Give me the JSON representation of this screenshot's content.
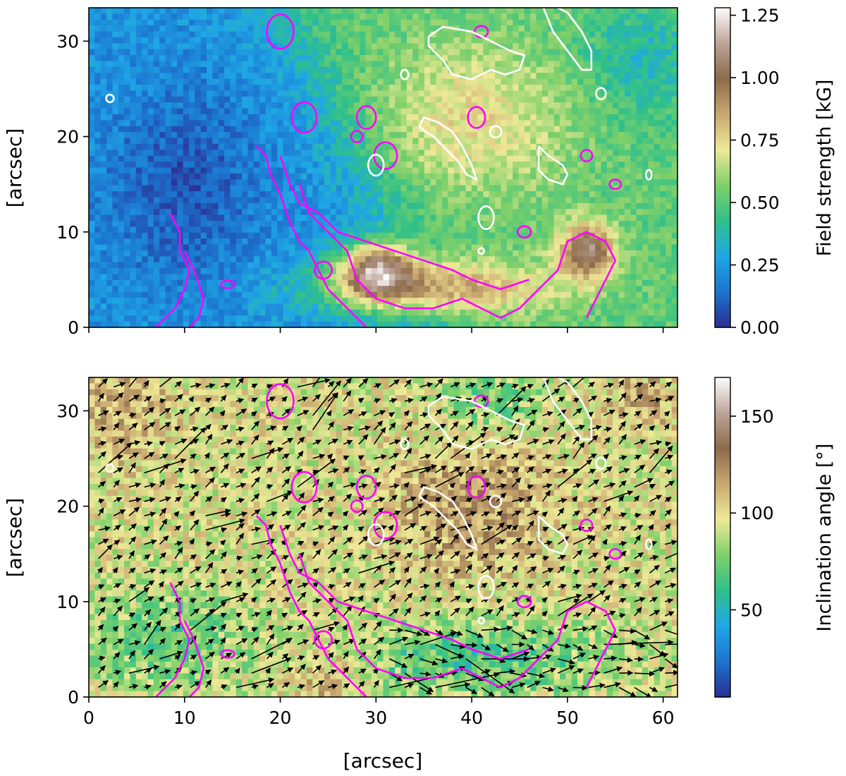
{
  "chart_data": [
    {
      "type": "heatmap",
      "panel": "top",
      "title": "",
      "xlabel": "",
      "ylabel": "[arcsec]",
      "xlim": [
        0,
        61.5
      ],
      "ylim": [
        0,
        33.5
      ],
      "xticks": [
        0,
        10,
        20,
        30,
        40,
        50,
        60
      ],
      "yticks": [
        0,
        10,
        20,
        30
      ],
      "ytick_labels": [
        "0",
        "10",
        "20",
        "30"
      ],
      "colorbar": {
        "label": "Field strength [kG]",
        "ticks": [
          0.0,
          0.25,
          0.5,
          0.75,
          1.0,
          1.25
        ],
        "tick_labels": [
          "0.00",
          "0.25",
          "0.50",
          "0.75",
          "1.00",
          "1.25"
        ],
        "range": [
          0,
          1.28
        ],
        "colormap": [
          "#2b2f92",
          "#1c74cf",
          "#1fa7e6",
          "#2fc08a",
          "#7fd06a",
          "#eee997",
          "#c9a870",
          "#8c6b4c",
          "#bda498",
          "#fdfdfd"
        ]
      },
      "contours": [
        {
          "color": "#ff00ff",
          "name": ""
        },
        {
          "color": "#ffffff",
          "name": ""
        }
      ]
    },
    {
      "type": "heatmap",
      "panel": "bottom",
      "title": "",
      "xlabel": "[arcsec]",
      "ylabel": "[arcsec]",
      "xlim": [
        0,
        61.5
      ],
      "ylim": [
        0,
        33.5
      ],
      "xticks": [
        0,
        10,
        20,
        30,
        40,
        50,
        60
      ],
      "xtick_labels": [
        "0",
        "10",
        "20",
        "30",
        "40",
        "50",
        "60"
      ],
      "yticks": [
        0,
        10,
        20,
        30
      ],
      "ytick_labels": [
        "0",
        "10",
        "20",
        "30"
      ],
      "colorbar": {
        "label": "Inclination angle [°]",
        "ticks": [
          50,
          100,
          150
        ],
        "tick_labels": [
          "50",
          "100",
          "150"
        ],
        "range": [
          5,
          170
        ],
        "colormap": [
          "#2b2f92",
          "#1c74cf",
          "#1fa7e6",
          "#2fc08a",
          "#7fd06a",
          "#eee997",
          "#c9a870",
          "#8c6b4c",
          "#bda498",
          "#fdfdfd"
        ]
      },
      "vector_field": {
        "color": "#000000"
      },
      "contours": [
        {
          "color": "#ff00ff",
          "name": ""
        },
        {
          "color": "#ffffff",
          "name": ""
        }
      ]
    }
  ]
}
